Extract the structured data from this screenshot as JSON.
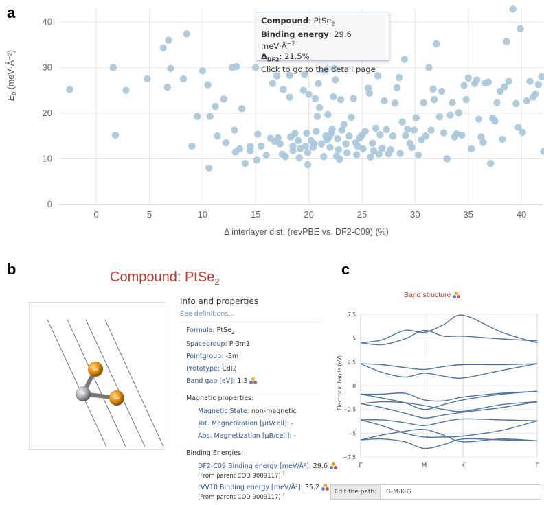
{
  "panels": {
    "a": "a",
    "b": "b",
    "c": "c"
  },
  "chart_data": {
    "type": "scatter",
    "title": "",
    "xlabel": "Δ interlayer dist. (revPBE vs. DF2-C09) (%)",
    "ylabel_main": "E",
    "ylabel_sub": "b",
    "ylabel_unit": " (meV·Å⁻²)",
    "xlim": [
      -3.5,
      42
    ],
    "ylim": [
      0,
      43
    ],
    "xticks": [
      0,
      5,
      10,
      15,
      20,
      25,
      30,
      35,
      40
    ],
    "yticks": [
      0,
      10,
      20,
      30,
      40
    ],
    "grid": true,
    "highlight_point": [
      21.5,
      29.6
    ],
    "color": "#a8c8dc",
    "points": [
      [
        -2.5,
        25.2
      ],
      [
        1.8,
        15.2
      ],
      [
        1.6,
        30
      ],
      [
        2.8,
        25
      ],
      [
        4.8,
        27.5
      ],
      [
        6.3,
        34.3
      ],
      [
        6.8,
        36
      ],
      [
        6.7,
        25.7
      ],
      [
        7,
        29.8
      ],
      [
        8.2,
        27.5
      ],
      [
        8.5,
        37.4
      ],
      [
        9.0,
        12.8
      ],
      [
        9.5,
        19.3
      ],
      [
        10,
        29.3
      ],
      [
        10.5,
        26.2
      ],
      [
        10.6,
        8
      ],
      [
        10.7,
        19.3
      ],
      [
        11.2,
        21.5
      ],
      [
        11.4,
        15
      ],
      [
        12,
        23.1
      ],
      [
        12.2,
        13.5
      ],
      [
        12.8,
        30
      ],
      [
        13.2,
        30.2
      ],
      [
        13,
        16.3
      ],
      [
        13.1,
        11.5
      ],
      [
        13.5,
        12.2
      ],
      [
        13.7,
        21
      ],
      [
        14,
        9
      ],
      [
        14.5,
        12.7
      ],
      [
        14.5,
        11.8
      ],
      [
        15,
        30
      ],
      [
        15.2,
        15.4
      ],
      [
        15.5,
        12.8
      ],
      [
        15.1,
        9.7
      ],
      [
        16,
        10.8
      ],
      [
        16.4,
        14.5
      ],
      [
        16.6,
        26.5
      ],
      [
        16.8,
        13.8
      ],
      [
        17,
        28.2
      ],
      [
        17.1,
        14.6
      ],
      [
        17.3,
        13.3
      ],
      [
        17.5,
        11
      ],
      [
        17.6,
        25.2
      ],
      [
        17.8,
        10.5
      ],
      [
        18.2,
        23.5
      ],
      [
        18.2,
        28.3
      ],
      [
        18.3,
        14.8
      ],
      [
        18.5,
        12.8
      ],
      [
        18.5,
        11.8
      ],
      [
        18.7,
        15.6
      ],
      [
        19,
        14
      ],
      [
        19.1,
        10.2
      ],
      [
        19.2,
        12.2
      ],
      [
        19.5,
        25
      ],
      [
        19.6,
        28.5
      ],
      [
        19.7,
        12.8
      ],
      [
        19.8,
        15.6
      ],
      [
        19.9,
        8.7
      ],
      [
        19.9,
        11.4
      ],
      [
        20,
        24.1
      ],
      [
        20.2,
        14
      ],
      [
        20.4,
        12.5
      ],
      [
        20.5,
        13.3
      ],
      [
        20.6,
        23.2
      ],
      [
        20.7,
        16
      ],
      [
        20.8,
        19.3
      ],
      [
        20.9,
        26.5
      ],
      [
        21,
        21.2
      ],
      [
        21.2,
        13.3
      ],
      [
        21.4,
        10.5
      ],
      [
        21.6,
        15
      ],
      [
        21.7,
        14.2
      ],
      [
        21.8,
        19.7
      ],
      [
        21.9,
        14.7
      ],
      [
        22.0,
        12.5
      ],
      [
        22.1,
        15.6
      ],
      [
        22.2,
        16.5
      ],
      [
        22.3,
        23.6
      ],
      [
        22.4,
        29.8
      ],
      [
        22.5,
        27.3
      ],
      [
        22.6,
        10.6
      ],
      [
        22.7,
        14.4
      ],
      [
        22.8,
        12
      ],
      [
        22.9,
        9.9
      ],
      [
        23,
        23
      ],
      [
        23.1,
        16.3
      ],
      [
        23.3,
        17.5
      ],
      [
        23.5,
        13.3
      ],
      [
        23.6,
        11.3
      ],
      [
        23.8,
        15
      ],
      [
        24,
        19.1
      ],
      [
        24.2,
        23.2
      ],
      [
        24.4,
        13.5
      ],
      [
        24.5,
        10.9
      ],
      [
        24.6,
        12.8
      ],
      [
        24.8,
        14.6
      ],
      [
        25,
        15.2
      ],
      [
        25.1,
        12.2
      ],
      [
        25.3,
        16
      ],
      [
        25.6,
        25.5
      ],
      [
        25.7,
        24.4
      ],
      [
        25.8,
        10.4
      ],
      [
        26,
        13.4
      ],
      [
        26.1,
        11.8
      ],
      [
        26.3,
        16.7
      ],
      [
        26.5,
        28.2
      ],
      [
        26.6,
        11
      ],
      [
        26.7,
        15.3
      ],
      [
        26.9,
        12.3
      ],
      [
        27.1,
        22.7
      ],
      [
        27.3,
        16.4
      ],
      [
        27.5,
        11.1
      ],
      [
        27.7,
        12
      ],
      [
        27.9,
        15
      ],
      [
        28.1,
        22.2
      ],
      [
        28.3,
        25.6
      ],
      [
        28.5,
        27.8
      ],
      [
        28.6,
        11.2
      ],
      [
        28.8,
        18.1
      ],
      [
        29,
        31.8
      ],
      [
        29.1,
        15.1
      ],
      [
        29.3,
        16.5
      ],
      [
        29.5,
        13.4
      ],
      [
        29.7,
        12.5
      ],
      [
        29.9,
        16.3
      ],
      [
        30.1,
        19
      ],
      [
        30.3,
        10.8
      ],
      [
        30.6,
        14.2
      ],
      [
        30.8,
        22.3
      ],
      [
        31,
        15
      ],
      [
        31.3,
        30
      ],
      [
        31.5,
        16.3
      ],
      [
        31.7,
        25.3
      ],
      [
        31.8,
        23
      ],
      [
        32,
        35.2
      ],
      [
        32.3,
        19.2
      ],
      [
        32.5,
        24.8
      ],
      [
        32.7,
        15.7
      ],
      [
        33,
        10
      ],
      [
        33.3,
        19.6
      ],
      [
        33.5,
        22.3
      ],
      [
        33.7,
        14.8
      ],
      [
        33.9,
        15.5
      ],
      [
        34.1,
        20.1
      ],
      [
        34.4,
        15.2
      ],
      [
        34.6,
        26.1
      ],
      [
        34.8,
        23
      ],
      [
        35,
        27.7
      ],
      [
        35.3,
        12.2
      ],
      [
        35.6,
        26.5
      ],
      [
        35.8,
        27.3
      ],
      [
        36,
        18.7
      ],
      [
        36.2,
        14.8
      ],
      [
        36.4,
        13.6
      ],
      [
        36.6,
        26.6
      ],
      [
        36.9,
        26.8
      ],
      [
        37.1,
        9
      ],
      [
        37.3,
        18.9
      ],
      [
        37.5,
        18.3
      ],
      [
        37.7,
        22.3
      ],
      [
        38,
        24.8
      ],
      [
        38.2,
        14.3
      ],
      [
        38.4,
        25.8
      ],
      [
        38.6,
        35.7
      ],
      [
        38.8,
        27
      ],
      [
        39.2,
        42.8
      ],
      [
        39.5,
        22.1
      ],
      [
        39.7,
        16.9
      ],
      [
        39.9,
        38.5
      ],
      [
        40.1,
        15.8
      ],
      [
        40.5,
        22.7
      ],
      [
        40.8,
        27
      ],
      [
        41.1,
        23.5
      ],
      [
        41.3,
        24.2
      ],
      [
        41.6,
        26.3
      ],
      [
        41.9,
        28
      ],
      [
        42.1,
        11.6
      ]
    ]
  },
  "tooltip": {
    "compound_label": "Compound",
    "compound_value": ": PtSe",
    "compound_sub": "2",
    "binding_label": "Binding energy",
    "binding_value": ": 29.6 meV·Å",
    "binding_sup": "−2",
    "delta_label": "Δ",
    "delta_sub": "DF2",
    "delta_value": ": 21.5%",
    "click_text": "Click to go to the detail page"
  },
  "compound_page": {
    "title": "Compound: PtSe",
    "title_sub": "2",
    "atom_labels": [
      "Se",
      "Se",
      "Pt"
    ],
    "info_heading": "Info and properties",
    "see_definitions": "See definitions...",
    "formula_label": "Formula:",
    "formula_value": "PtSe",
    "formula_sub": "2",
    "spacegroup_label": "Spacegroup:",
    "spacegroup_value": "P-3m1",
    "pointgroup_label": "Pointgroup:",
    "pointgroup_value": "-3m",
    "prototype_label": "Prototype:",
    "prototype_value": "CdI2",
    "bandgap_label": "Band gap [eV]:",
    "bandgap_value": "1.3",
    "magnetic_heading": "Magnetic properties:",
    "mag_state_label": "Magnetic State:",
    "mag_state_value": "non-magnetic",
    "tot_mag_label": "Tot. Magnetization [μB/cell]:",
    "tot_mag_value": "-",
    "abs_mag_label": "Abs. Magnetization [μB/cell]:",
    "abs_mag_value": "-",
    "binding_heading": "Binding Energies:",
    "df2_label": "DF2-C09 Binding energy [meV/Å²]:",
    "df2_value": "29.6",
    "df2_note": "(From parent COD 9009117)",
    "rvv_label": "rVV10 Binding energy [meV/Å²]:",
    "rvv_value": "35.2",
    "rvv_note": "(From parent COD 9009117)",
    "superscript_q": "?"
  },
  "band_structure": {
    "title": "Band structure",
    "ylabel": "Electronic bands (eV)",
    "yticks": [
      "7.5",
      "5",
      "2.5",
      "0",
      "−2.5",
      "−5",
      "−7.5"
    ],
    "ytick_values": [
      7.5,
      5,
      2.5,
      0,
      -2.5,
      -5,
      -7.5
    ],
    "kpoints": [
      "Γ",
      "M",
      "K",
      "Γ"
    ],
    "kpoint_positions": [
      0,
      0.36,
      0.58,
      1.0
    ],
    "ylim": [
      -7.5,
      7.5
    ],
    "line_color": "#4a74a8",
    "bands": [
      [
        [
          0,
          -5.7
        ],
        [
          0.12,
          -5.6
        ],
        [
          0.25,
          -5.9
        ],
        [
          0.36,
          -6.6
        ],
        [
          0.47,
          -6.2
        ],
        [
          0.58,
          -5.6
        ],
        [
          0.8,
          -5.7
        ],
        [
          1,
          -5.8
        ]
      ],
      [
        [
          0,
          -5.7
        ],
        [
          0.12,
          -5.2
        ],
        [
          0.25,
          -4.8
        ],
        [
          0.36,
          -4.6
        ],
        [
          0.47,
          -5.2
        ],
        [
          0.58,
          -5.9
        ],
        [
          0.8,
          -5.6
        ],
        [
          1,
          -5.8
        ]
      ],
      [
        [
          0,
          -3.6
        ],
        [
          0.12,
          -4.2
        ],
        [
          0.25,
          -5.0
        ],
        [
          0.36,
          -5.4
        ],
        [
          0.47,
          -5.4
        ],
        [
          0.58,
          -5.3
        ],
        [
          0.8,
          -4.7
        ],
        [
          1,
          -3.7
        ]
      ],
      [
        [
          0,
          -3.6
        ],
        [
          0.12,
          -3.6
        ],
        [
          0.25,
          -3.9
        ],
        [
          0.36,
          -4.2
        ],
        [
          0.47,
          -3.8
        ],
        [
          0.58,
          -3.5
        ],
        [
          0.8,
          -3.6
        ],
        [
          1,
          -3.7
        ]
      ],
      [
        [
          0,
          -1.9
        ],
        [
          0.12,
          -2.3
        ],
        [
          0.25,
          -2.9
        ],
        [
          0.36,
          -3.4
        ],
        [
          0.47,
          -3.1
        ],
        [
          0.58,
          -2.8
        ],
        [
          0.8,
          -2.3
        ],
        [
          1,
          -1.7
        ]
      ],
      [
        [
          0,
          -1.9
        ],
        [
          0.12,
          -1.7
        ],
        [
          0.25,
          -1.8
        ],
        [
          0.36,
          -2.1
        ],
        [
          0.47,
          -2.5
        ],
        [
          0.58,
          -2.7
        ],
        [
          0.8,
          -2.0
        ],
        [
          1,
          -1.7
        ]
      ],
      [
        [
          0,
          -0.9
        ],
        [
          0.12,
          -1.3
        ],
        [
          0.25,
          -1.8
        ],
        [
          0.36,
          -2.5
        ],
        [
          0.47,
          -2.0
        ],
        [
          0.58,
          -1.5
        ],
        [
          0.8,
          -0.9
        ],
        [
          1,
          -0.6
        ]
      ],
      [
        [
          0,
          -0.9
        ],
        [
          0.12,
          -0.9
        ],
        [
          0.25,
          -0.8
        ],
        [
          0.36,
          -1.5
        ],
        [
          0.47,
          -1.6
        ],
        [
          0.58,
          -1.2
        ],
        [
          0.8,
          -0.8
        ],
        [
          1,
          -0.6
        ]
      ],
      [
        [
          0,
          2.3
        ],
        [
          0.12,
          1.4
        ],
        [
          0.25,
          0.9
        ],
        [
          0.36,
          1.3
        ],
        [
          0.47,
          1.0
        ],
        [
          0.58,
          0.8
        ],
        [
          0.8,
          1.6
        ],
        [
          1,
          2.3
        ]
      ],
      [
        [
          0,
          2.3
        ],
        [
          0.12,
          2.2
        ],
        [
          0.25,
          1.9
        ],
        [
          0.36,
          1.7
        ],
        [
          0.47,
          2.0
        ],
        [
          0.58,
          2.2
        ],
        [
          0.8,
          2.2
        ],
        [
          1,
          2.3
        ]
      ],
      [
        [
          0,
          4.5
        ],
        [
          0.12,
          4.8
        ],
        [
          0.25,
          5.8
        ],
        [
          0.36,
          5.6
        ],
        [
          0.47,
          6.4
        ],
        [
          0.58,
          7.4
        ],
        [
          0.8,
          5.6
        ],
        [
          1,
          4.5
        ]
      ],
      [
        [
          0,
          4.5
        ],
        [
          0.12,
          4.3
        ],
        [
          0.25,
          4.9
        ],
        [
          0.36,
          5.8
        ],
        [
          0.47,
          5.2
        ],
        [
          0.58,
          5.2
        ],
        [
          0.8,
          4.9
        ],
        [
          1,
          4.7
        ]
      ]
    ]
  },
  "edit_path": {
    "label": "Edit the path:",
    "value": "G-M-K-G"
  }
}
